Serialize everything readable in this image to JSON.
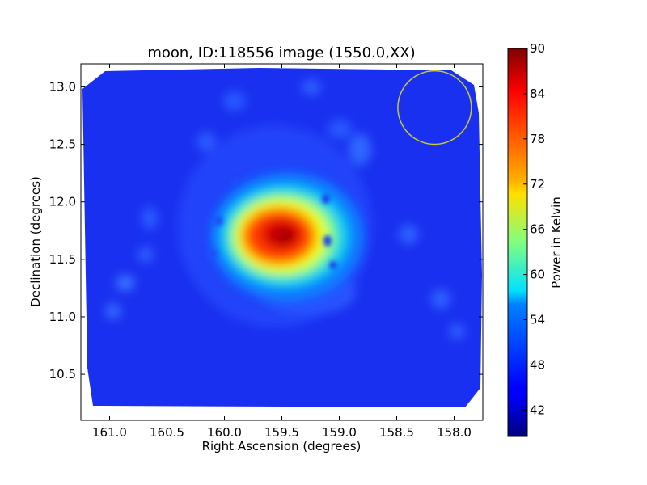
{
  "chart_data": {
    "type": "heatmap",
    "title": "moon, ID:118556 image (1550.0,XX)",
    "xlabel": "Right Ascension (degrees)",
    "ylabel": "Declination (degrees)",
    "colorbar_label": "Power in Kelvin",
    "colormap": "jet",
    "x_reversed": true,
    "xlim": [
      161.25,
      157.75
    ],
    "ylim": [
      10.1,
      13.2
    ],
    "x_ticks": [
      161.0,
      160.5,
      160.0,
      159.5,
      159.0,
      158.5,
      158.0
    ],
    "x_tick_labels": [
      "161.0",
      "160.5",
      "160.0",
      "159.5",
      "159.0",
      "158.5",
      "158.0"
    ],
    "y_ticks": [
      10.5,
      11.0,
      11.5,
      12.0,
      12.5,
      13.0
    ],
    "y_tick_labels": [
      "10.5",
      "11.0",
      "11.5",
      "12.0",
      "12.5",
      "13.0"
    ],
    "colorbar_range": [
      38.5,
      90
    ],
    "colorbar_ticks": [
      42,
      48,
      54,
      60,
      66,
      72,
      78,
      84,
      90
    ],
    "colorbar_tick_labels": [
      "42",
      "48",
      "54",
      "60",
      "66",
      "72",
      "78",
      "84",
      "90"
    ],
    "background_level": 44,
    "peak": {
      "ra": 159.53,
      "dec": 11.7,
      "value": 90
    },
    "data_region_dec_range": [
      10.21,
      13.15
    ],
    "beam_circle": {
      "ra": 158.17,
      "dec": 12.82,
      "radius_deg": 0.32,
      "color": "#c8c832"
    },
    "colors": {
      "frame": "#000000",
      "background": "#ffffff"
    }
  }
}
